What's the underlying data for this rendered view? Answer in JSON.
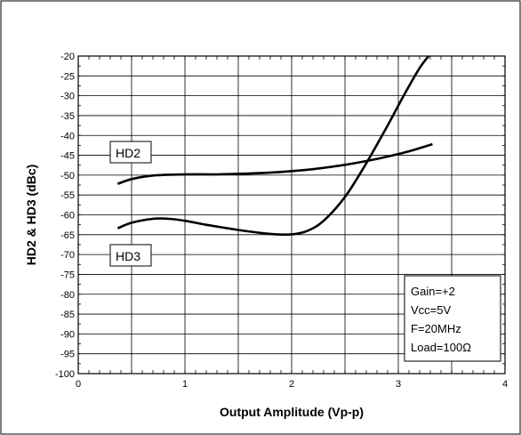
{
  "chart_data": {
    "type": "line",
    "title": "",
    "xlabel": "Output Amplitude  (Vp-p)",
    "ylabel": "HD2 & HD3  (dBc)",
    "xlim": [
      0,
      4
    ],
    "ylim": [
      -100,
      -20
    ],
    "xticks": [
      "0",
      "1",
      "2",
      "3",
      "4"
    ],
    "yticks": [
      "-100",
      "-95",
      "-90",
      "-85",
      "-80",
      "-75",
      "-70",
      "-65",
      "-60",
      "-55",
      "-50",
      "-45",
      "-40",
      "-35",
      "-30",
      "-25",
      "-20"
    ],
    "grid": true,
    "series": [
      {
        "name": "HD2",
        "x": [
          0.37,
          0.5,
          0.7,
          1.0,
          1.3,
          1.6,
          1.9,
          2.2,
          2.5,
          2.8,
          3.1,
          3.32
        ],
        "y": [
          -52.2,
          -51.0,
          -50.1,
          -49.8,
          -49.8,
          -49.6,
          -49.2,
          -48.5,
          -47.4,
          -45.9,
          -44.0,
          -42.2
        ]
      },
      {
        "name": "HD3",
        "x": [
          0.37,
          0.5,
          0.7,
          0.85,
          1.0,
          1.2,
          1.5,
          1.8,
          2.0,
          2.15,
          2.3,
          2.5,
          2.7,
          2.9,
          3.05,
          3.2,
          3.3
        ],
        "y": [
          -63.4,
          -62.0,
          -61.0,
          -61.0,
          -61.5,
          -62.5,
          -63.8,
          -64.8,
          -64.9,
          -64.0,
          -61.5,
          -55.5,
          -47.0,
          -37.5,
          -30.0,
          -23.0,
          -19.5
        ]
      }
    ],
    "annotations": {
      "hd2_label": "HD2",
      "hd3_label": "HD3",
      "conditions": [
        "Gain=+2",
        "Vcc=5V",
        "F=20MHz",
        "Load=100Ω"
      ]
    }
  }
}
